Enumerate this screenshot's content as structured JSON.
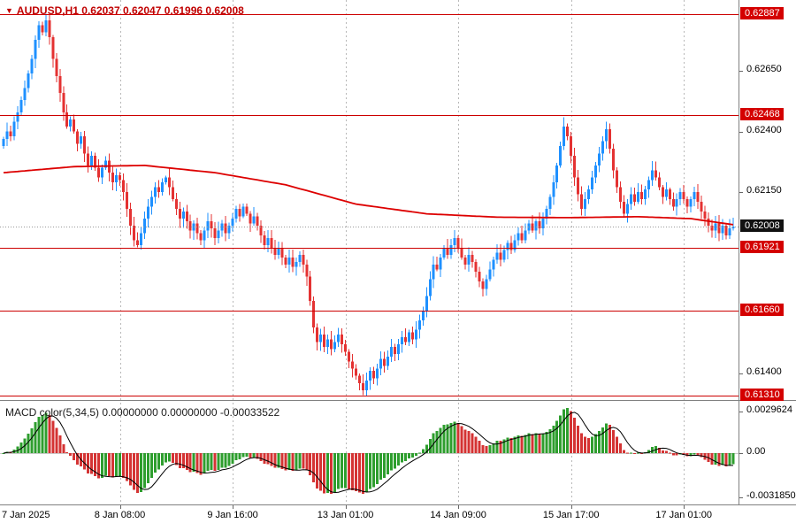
{
  "header": {
    "collapse_icon": "▼",
    "symbol": "AUDUSD,H1",
    "open": "0.62037",
    "high": "0.62047",
    "low": "0.61996",
    "close": "0.62008",
    "quote_line": "0.62037 0.62047 0.61996 0.62008"
  },
  "chart_data": {
    "type": "candlestick",
    "title": "AUDUSD,H1",
    "y_axis": {
      "range_top": 0.62944,
      "range_bottom": 0.6129,
      "ticks": [
        "0.62650",
        "0.62400",
        "0.62150",
        "0.61400"
      ]
    },
    "x_axis": {
      "ticks": [
        {
          "bar": 1,
          "label": "7 Jan 2025",
          "grid": false,
          "align": "left"
        },
        {
          "bar": 33,
          "label": "8 Jan 08:00",
          "grid": true
        },
        {
          "bar": 65,
          "label": "9 Jan 16:00",
          "grid": true
        },
        {
          "bar": 97,
          "label": "13 Jan 01:00",
          "grid": true
        },
        {
          "bar": 129,
          "label": "14 Jan 09:00",
          "grid": true
        },
        {
          "bar": 161,
          "label": "15 Jan 17:00",
          "grid": true
        },
        {
          "bar": 193,
          "label": "17 Jan 01:00",
          "grid": true
        }
      ]
    },
    "levels": [
      {
        "value": 0.62887,
        "label": "0.62887"
      },
      {
        "value": 0.62468,
        "label": "0.62468"
      },
      {
        "value": 0.61921,
        "label": "0.61921"
      },
      {
        "value": 0.6166,
        "label": "0.61660"
      },
      {
        "value": 0.6131,
        "label": "0.61310"
      }
    ],
    "current_price": {
      "value": 0.62008,
      "label": "0.62008"
    },
    "open_first": 0.6234,
    "closes": [
      0.6237,
      0.624,
      0.6238,
      0.6244,
      0.6248,
      0.6253,
      0.6258,
      0.6264,
      0.627,
      0.6278,
      0.6284,
      0.6281,
      0.6286,
      0.6279,
      0.627,
      0.6263,
      0.6256,
      0.6248,
      0.6242,
      0.6245,
      0.624,
      0.6235,
      0.6238,
      0.6231,
      0.6226,
      0.623,
      0.6225,
      0.6221,
      0.6225,
      0.6228,
      0.6223,
      0.6219,
      0.6222,
      0.622,
      0.6215,
      0.6208,
      0.6201,
      0.6195,
      0.6193,
      0.6198,
      0.6204,
      0.6209,
      0.6213,
      0.6217,
      0.6215,
      0.6219,
      0.6221,
      0.6217,
      0.6212,
      0.6208,
      0.6204,
      0.6207,
      0.6203,
      0.6199,
      0.6202,
      0.6198,
      0.6195,
      0.6199,
      0.6203,
      0.62,
      0.6196,
      0.6199,
      0.6202,
      0.6198,
      0.6201,
      0.6204,
      0.6208,
      0.6205,
      0.6209,
      0.6206,
      0.6202,
      0.6205,
      0.6201,
      0.6197,
      0.6193,
      0.6196,
      0.6192,
      0.6189,
      0.6192,
      0.6188,
      0.6185,
      0.6188,
      0.6184,
      0.6186,
      0.6189,
      0.6185,
      0.618,
      0.617,
      0.6159,
      0.6153,
      0.6156,
      0.6151,
      0.6154,
      0.615,
      0.6153,
      0.6156,
      0.6152,
      0.6149,
      0.6145,
      0.6142,
      0.6139,
      0.6136,
      0.6133,
      0.6137,
      0.6141,
      0.6138,
      0.6142,
      0.6146,
      0.6143,
      0.6147,
      0.6151,
      0.6148,
      0.6152,
      0.6155,
      0.6153,
      0.6157,
      0.6154,
      0.6158,
      0.6162,
      0.6166,
      0.6172,
      0.6179,
      0.6185,
      0.6183,
      0.6188,
      0.6192,
      0.6189,
      0.6193,
      0.6196,
      0.6192,
      0.6188,
      0.6185,
      0.6189,
      0.6186,
      0.6182,
      0.6178,
      0.6175,
      0.6179,
      0.6183,
      0.6187,
      0.619,
      0.6187,
      0.6191,
      0.6194,
      0.6191,
      0.6195,
      0.6198,
      0.6195,
      0.6199,
      0.6202,
      0.6199,
      0.6203,
      0.62,
      0.6204,
      0.6208,
      0.6213,
      0.6219,
      0.6226,
      0.6234,
      0.6242,
      0.6238,
      0.623,
      0.6221,
      0.6214,
      0.6208,
      0.6212,
      0.6216,
      0.6221,
      0.6226,
      0.6231,
      0.6236,
      0.6241,
      0.6233,
      0.6224,
      0.6217,
      0.6211,
      0.6206,
      0.621,
      0.6214,
      0.6211,
      0.6215,
      0.6212,
      0.6216,
      0.622,
      0.6224,
      0.6221,
      0.6217,
      0.6213,
      0.6216,
      0.6212,
      0.6209,
      0.6212,
      0.6215,
      0.6212,
      0.6209,
      0.6212,
      0.6215,
      0.6211,
      0.6207,
      0.6204,
      0.6201,
      0.6199,
      0.6202,
      0.6198,
      0.6201,
      0.6197,
      0.62,
      0.62008
    ],
    "wick_overrides": {
      "12": {
        "high": 0.62887
      },
      "102": {
        "low": 0.6131
      },
      "159": {
        "high": 0.6246
      },
      "171": {
        "high": 0.6244
      }
    },
    "ma_line": {
      "color": "#dd0000",
      "points": [
        [
          0,
          0.6223
        ],
        [
          20,
          0.62255
        ],
        [
          40,
          0.6226
        ],
        [
          60,
          0.6223
        ],
        [
          80,
          0.6218
        ],
        [
          100,
          0.621
        ],
        [
          120,
          0.6206
        ],
        [
          140,
          0.62046
        ],
        [
          160,
          0.62044
        ],
        [
          180,
          0.62048
        ],
        [
          195,
          0.6204
        ],
        [
          207,
          0.62015
        ]
      ]
    },
    "colors": {
      "bull": "#1e90ff",
      "bear": "#e43232",
      "level": "#cc0000",
      "level_label_bg": "#d40000",
      "price_label_bg": "#111111",
      "grid": "#b8b8b8",
      "current_line": "#999999",
      "macd_up": "#2e9e2e",
      "macd_down": "#d43333",
      "macd_signal": "#000000",
      "header_text": "#c00000"
    },
    "indicator": {
      "name": "MACD color(5,34,5)",
      "values": [
        "0.00000000",
        "0.00000000",
        "-0.00033522"
      ],
      "values_line": "0.00000000 0.00000000 -0.00033522",
      "fast": 5,
      "slow": 34,
      "signal": 5,
      "axis_labels": {
        "top": "0.0029624",
        "zero": "0.00",
        "bottom": "-0.0031850"
      }
    }
  }
}
